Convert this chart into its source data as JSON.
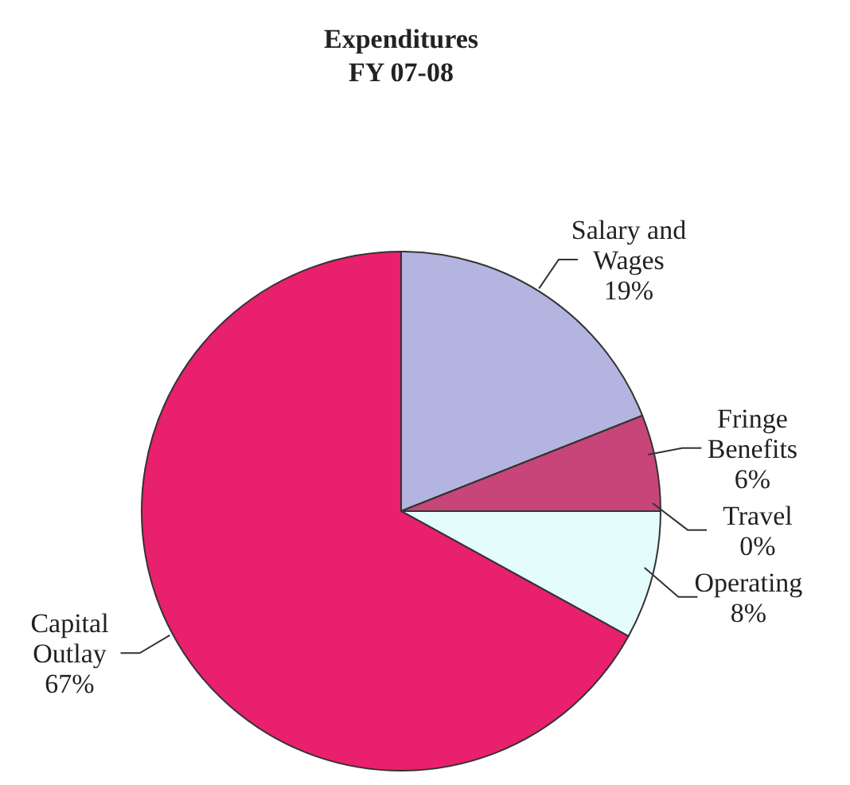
{
  "chart_data": {
    "type": "pie",
    "title": "Expenditures\nFY 07-08",
    "categories": [
      "Salary and Wages",
      "Fringe Benefits",
      "Travel",
      "Operating",
      "Capital Outlay"
    ],
    "values": [
      19,
      6,
      0,
      8,
      67
    ],
    "value_labels": [
      "19%",
      "6%",
      "0%",
      "8%",
      "67%"
    ],
    "colors": [
      "#b4b4e0",
      "#c8457a",
      "#50304a",
      "#e4fcfc",
      "#e8206e"
    ]
  }
}
